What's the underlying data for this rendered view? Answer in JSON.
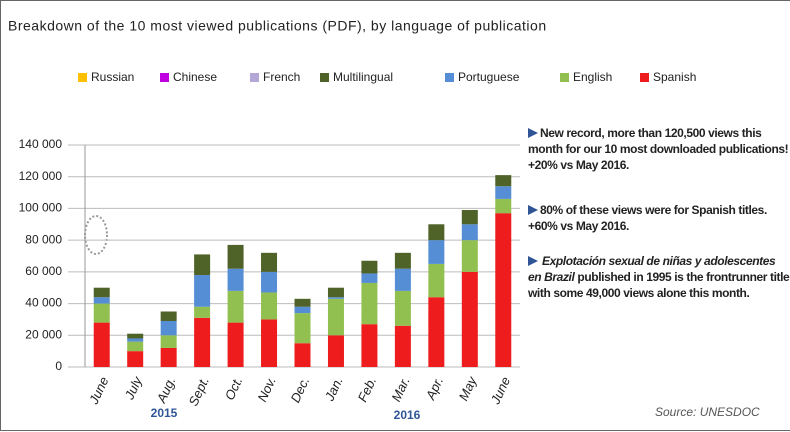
{
  "chart_data": {
    "type": "bar",
    "stacked": true,
    "title": "Breakdown of the 10 most viewed publications (PDF), by language of publication",
    "categories": [
      "June",
      "July",
      "Aug.",
      "Sept.",
      "Oct.",
      "Nov.",
      "Dec.",
      "Jan.",
      "Feb.",
      "Mar.",
      "Apr.",
      "May",
      "June"
    ],
    "series": [
      {
        "name": "Spanish",
        "color": "#ee1c1c",
        "values": [
          28000,
          10000,
          12000,
          31000,
          28000,
          30000,
          15000,
          20000,
          27000,
          26000,
          44000,
          60000,
          97000
        ]
      },
      {
        "name": "English",
        "color": "#92c050",
        "values": [
          12000,
          6000,
          8000,
          7000,
          20000,
          17000,
          19000,
          23000,
          26000,
          22000,
          21000,
          20000,
          9000
        ]
      },
      {
        "name": "Portuguese",
        "color": "#558ed5",
        "values": [
          4000,
          2000,
          9000,
          20000,
          14000,
          13000,
          4000,
          1000,
          6000,
          14000,
          15000,
          10000,
          8000
        ]
      },
      {
        "name": "Multilingual",
        "color": "#4f6228",
        "values": [
          6000,
          3000,
          6000,
          13000,
          15000,
          12000,
          5000,
          6000,
          8000,
          10000,
          10000,
          9000,
          7000
        ]
      },
      {
        "name": "French",
        "color": "#b4a7d6",
        "values": [
          0,
          0,
          0,
          0,
          0,
          0,
          0,
          0,
          0,
          0,
          0,
          0,
          0
        ]
      },
      {
        "name": "Chinese",
        "color": "#c000e0",
        "values": [
          0,
          0,
          0,
          0,
          0,
          0,
          0,
          0,
          0,
          0,
          0,
          0,
          0
        ]
      },
      {
        "name": "Russian",
        "color": "#ffc000",
        "values": [
          0,
          0,
          0,
          0,
          0,
          0,
          0,
          0,
          0,
          0,
          0,
          0,
          0
        ]
      }
    ],
    "ylim": [
      0,
      140000
    ],
    "yticks": [
      0,
      {
        "value": 20000,
        "label": "20 000"
      },
      {
        "value": 40000,
        "label": "40 000"
      },
      {
        "value": 60000,
        "label": "60 000"
      },
      {
        "value": 80000,
        "label": "80 000"
      },
      {
        "value": 100000,
        "label": "100 000"
      },
      {
        "value": 120000,
        "label": "120 000"
      },
      {
        "value": 140000,
        "label": "140 000"
      }
    ],
    "grid": true,
    "legend": "top",
    "years": [
      "2015",
      "2016"
    ],
    "annotations": [
      [
        "New record, more than 120,500 views this month for our 10 most downloaded publications!",
        "+20% vs May 2016."
      ],
      [
        "80% of these views were for Spanish titles. +60% vs May 2016."
      ],
      [
        "Explotación sexual de niñas y adolescentes en Brazil",
        "published in 1995 is the frontrunner title with some 49,000 views alone this month."
      ]
    ],
    "source": "Source: UNESDOC"
  }
}
